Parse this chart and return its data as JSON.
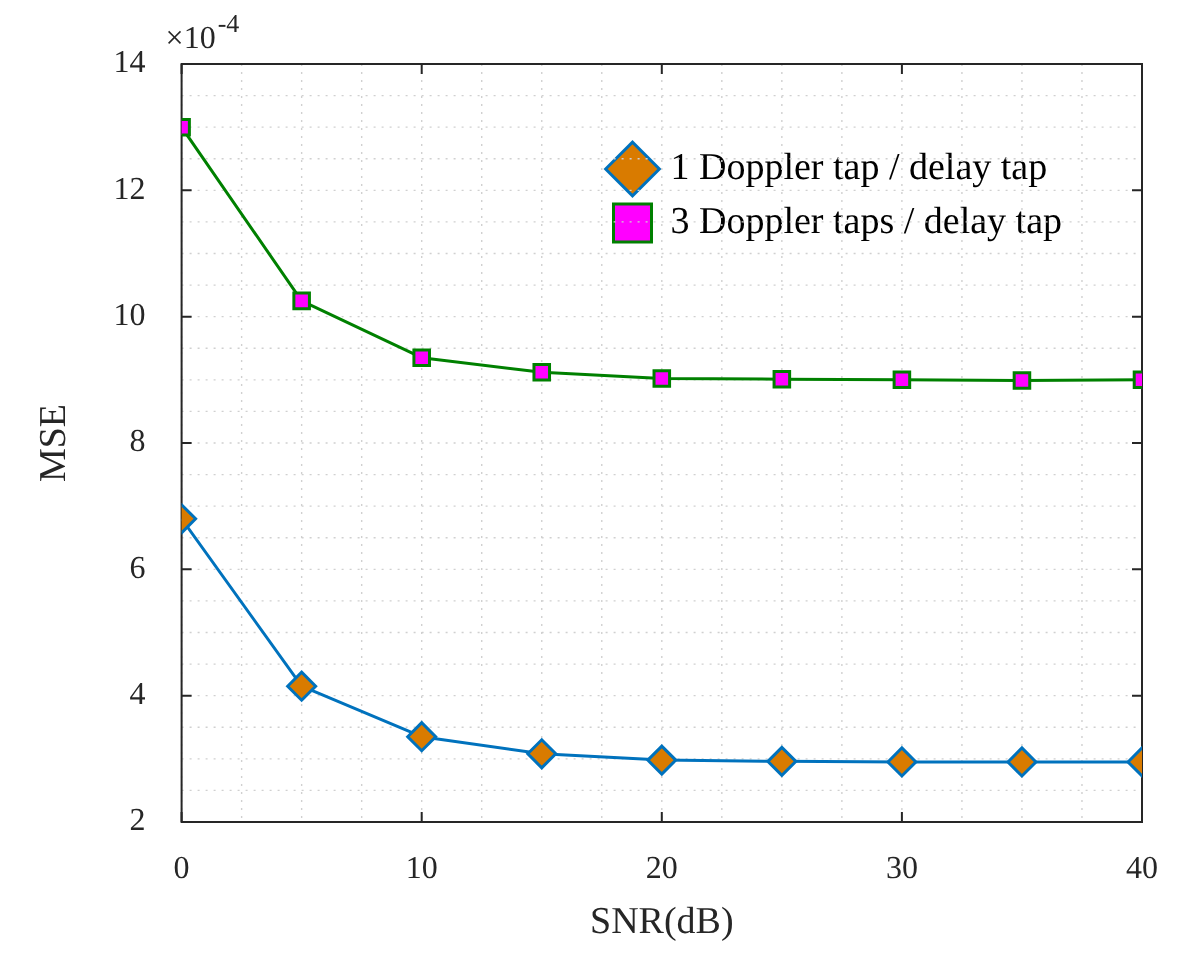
{
  "chart_data": {
    "type": "line",
    "xlabel": "SNR(dB)",
    "ylabel": "MSE",
    "annotations": [
      "×10$^{-4}$"
    ],
    "x": [
      0,
      5,
      10,
      15,
      20,
      25,
      30,
      35,
      40
    ],
    "series": [
      {
        "name": "1 Doppler tap / delay tap",
        "color": "#0072bd",
        "marker": "diamond",
        "values": [
          6.8,
          4.15,
          3.35,
          3.08,
          2.98,
          2.96,
          2.95,
          2.95,
          2.95
        ]
      },
      {
        "name": "3 Doppler taps / delay tap",
        "color": "#008000",
        "marker": "square",
        "values": [
          13.0,
          10.25,
          9.35,
          9.12,
          9.02,
          9.01,
          9.0,
          8.99,
          9.0
        ]
      }
    ],
    "xlim": [
      0,
      40
    ],
    "xticks": [
      0,
      10,
      20,
      30,
      40
    ],
    "ylim": [
      2,
      14
    ],
    "yticks": [
      2,
      4,
      6,
      8,
      10,
      12,
      14
    ],
    "grid": true,
    "legend": "top right"
  }
}
